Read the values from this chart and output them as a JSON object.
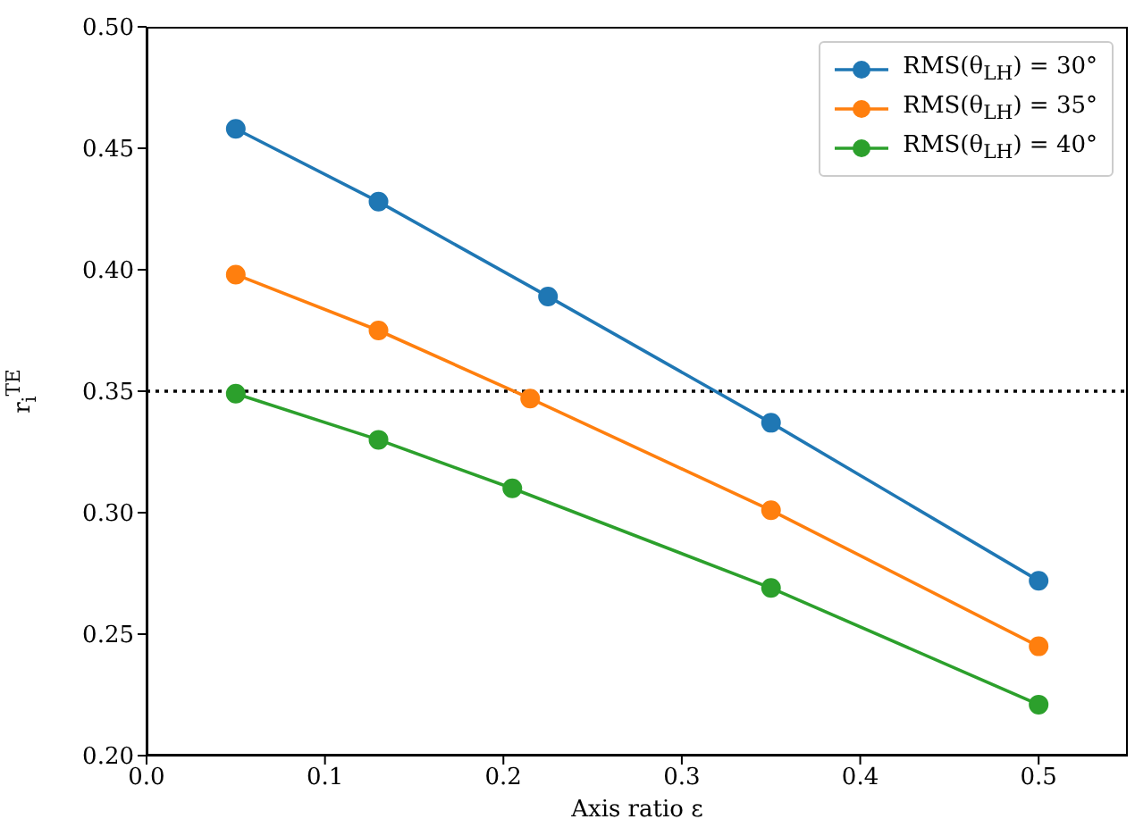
{
  "chart_data": {
    "type": "line",
    "xlabel": "Axis ratio ε",
    "ylabel": "r$_{i}$$^{TE}$",
    "xlim": [
      0,
      0.55
    ],
    "xticks": [
      {
        "value": 0,
        "label": "0.0"
      },
      0.1,
      0.2,
      0.3,
      0.4,
      0.5
    ],
    "ylim": [
      0.2,
      0.5
    ],
    "yticks": [
      {
        "value": 0.2,
        "label": "0.20"
      },
      0.25,
      {
        "value": 0.3,
        "label": "0.30"
      },
      0.35,
      {
        "value": 0.4,
        "label": "0.40"
      },
      0.45,
      {
        "value": 0.5,
        "label": "0.50"
      }
    ],
    "grid": false,
    "legend": "top right",
    "marker": "circle",
    "line_style": "solid",
    "ref_lines": [
      {
        "axis": "y",
        "value": 0.35,
        "color": "#000000",
        "line_style": "dotted"
      }
    ],
    "series": [
      {
        "name": "RMS(θ$_{LH}$) = 30°",
        "color": "#1f77b4",
        "x": [
          0.05,
          0.13,
          0.225,
          0.35,
          0.5
        ],
        "values": [
          0.458,
          0.428,
          0.389,
          0.337,
          0.272
        ]
      },
      {
        "name": "RMS(θ$_{LH}$) = 35°",
        "color": "#ff7f0e",
        "x": [
          0.05,
          0.13,
          0.215,
          0.35,
          0.5
        ],
        "values": [
          0.398,
          0.375,
          0.347,
          0.301,
          0.245
        ]
      },
      {
        "name": "RMS(θ$_{LH}$) = 40°",
        "color": "#2ca02c",
        "x": [
          0.05,
          0.13,
          0.205,
          0.35,
          0.5
        ],
        "values": [
          0.349,
          0.33,
          0.31,
          0.269,
          0.221
        ]
      }
    ]
  }
}
